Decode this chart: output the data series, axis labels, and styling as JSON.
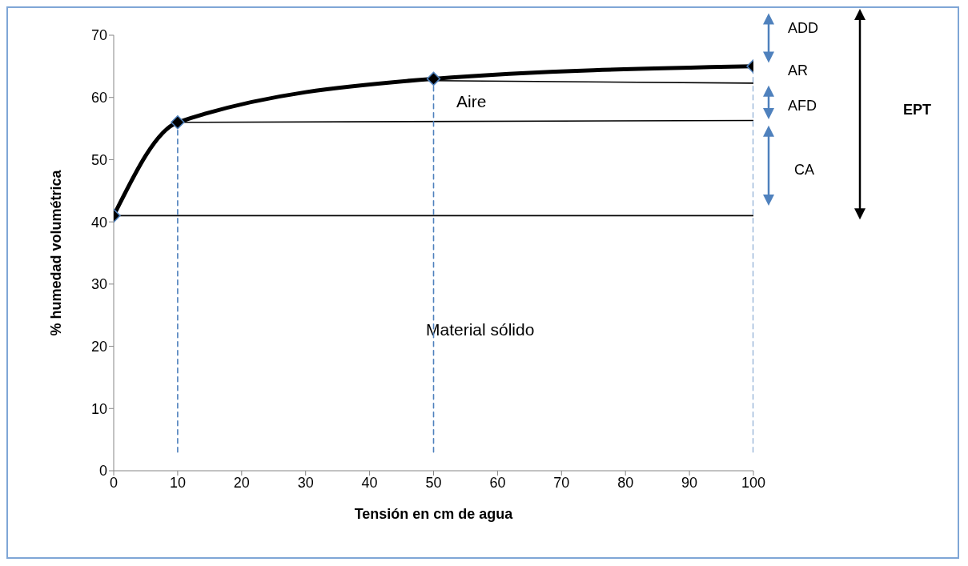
{
  "chart_data": {
    "type": "line",
    "xlabel": "Tensión en cm de agua",
    "ylabel": "% humedad volumétrica",
    "xlim": [
      0,
      100
    ],
    "xticks": [
      0,
      10,
      20,
      30,
      40,
      50,
      60,
      70,
      80,
      90,
      100
    ],
    "ylim": [
      0,
      70
    ],
    "yticks": [
      0,
      10,
      20,
      30,
      40,
      50,
      60,
      70
    ],
    "grid": false,
    "legend": false,
    "series": [
      {
        "x": [
          0,
          10,
          50,
          100
        ],
        "values": [
          41,
          56,
          63,
          65
        ],
        "color": "#000000",
        "marker": "diamond"
      },
      {
        "x": [
          0,
          100
        ],
        "values": [
          41,
          41
        ],
        "color": "#000000"
      },
      {
        "x": [
          10,
          100
        ],
        "values": [
          56,
          56.3
        ],
        "color": "#000000"
      },
      {
        "x": [
          50,
          100
        ],
        "values": [
          62.7,
          62.3
        ],
        "color": "#000000"
      },
      {
        "x": [
          10,
          10
        ],
        "values": [
          3,
          56
        ],
        "color": "#4f81bd",
        "line_style": "dashed"
      },
      {
        "x": [
          50,
          50
        ],
        "values": [
          3,
          63
        ],
        "color": "#4f81bd",
        "line_style": "dashed"
      },
      {
        "x": [
          100,
          100
        ],
        "values": [
          3,
          65
        ],
        "color": "#4f81bd",
        "line_style": "dashed"
      }
    ],
    "annotations": [
      "Aire",
      "Material sólido",
      "ADD",
      "AR",
      "AFD",
      "CA",
      "EPT"
    ]
  }
}
